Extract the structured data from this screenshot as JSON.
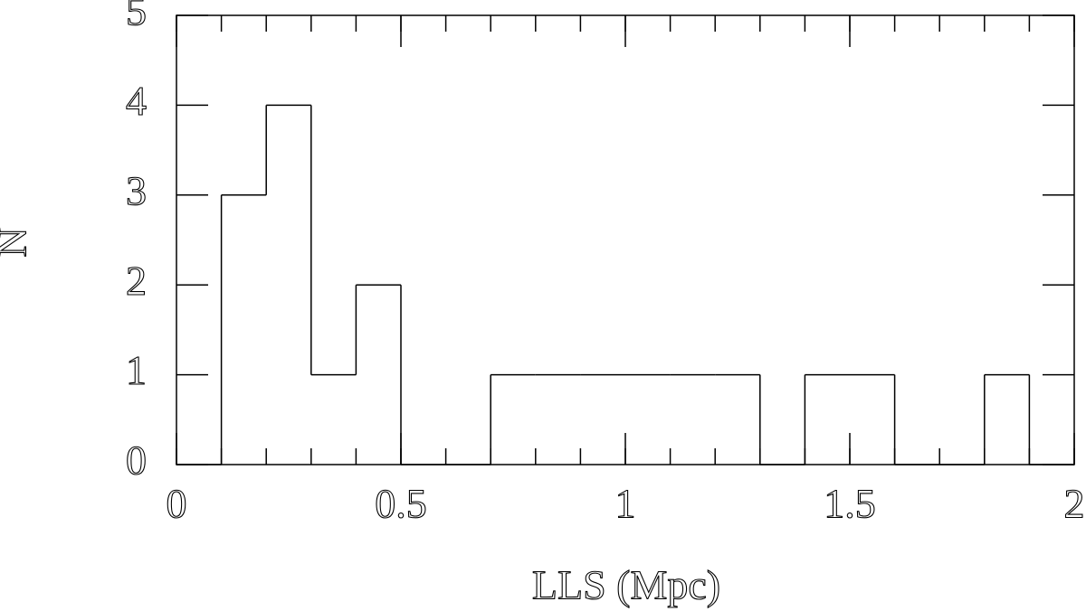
{
  "chart_data": {
    "type": "histogram",
    "xlabel": "LLS (Mpc)",
    "ylabel": "N",
    "bins": [
      0,
      0.1,
      0.2,
      0.3,
      0.4,
      0.5,
      0.6,
      0.7,
      0.8,
      0.9,
      1.0,
      1.1,
      1.2,
      1.3,
      1.4,
      1.5,
      1.6,
      1.7,
      1.8,
      1.9,
      2.0
    ],
    "values": [
      0,
      3,
      4,
      1,
      2,
      0,
      0,
      1,
      1,
      1,
      1,
      1,
      1,
      0,
      1,
      1,
      0,
      0,
      1,
      0
    ],
    "color": "#000000",
    "xlim": [
      0,
      2
    ],
    "xticks": [
      0,
      0.5,
      1,
      1.5,
      2
    ],
    "ylim": [
      0,
      5
    ],
    "yticks": [
      0,
      1,
      2,
      3,
      4,
      5
    ]
  }
}
